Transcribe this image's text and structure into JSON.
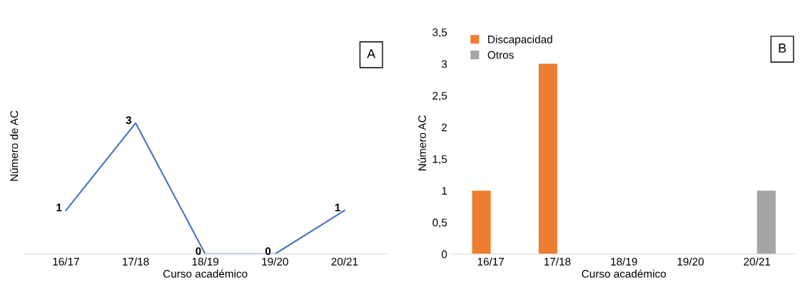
{
  "chart_data": [
    {
      "type": "line",
      "categories": [
        "16/17",
        "17/18",
        "18/19",
        "19/20",
        "20/21"
      ],
      "xlabel": "Curso académico",
      "ylabel": "Número de AC",
      "annotations": [
        "A"
      ],
      "data_labels": true,
      "tick_labels": "x",
      "grid": false,
      "legend": false,
      "marker": "none",
      "line_style": "solid",
      "series": [
        {
          "color": "#4472c4",
          "values": [
            1,
            3,
            0,
            0,
            1
          ]
        }
      ]
    },
    {
      "type": "bar",
      "categories": [
        "16/17",
        "17/18",
        "18/19",
        "19/20",
        "20/21"
      ],
      "xlabel": "Curso académico",
      "ylabel": "Número AC",
      "annotations": [
        "B"
      ],
      "grid": false,
      "legend": "top left",
      "ylim": [
        0,
        3.5
      ],
      "yticks": [
        0,
        {
          "value": 0.5,
          "label": "0,5"
        },
        1,
        {
          "value": 1.5,
          "label": "1,5"
        },
        2,
        {
          "value": 2.5,
          "label": "2,5"
        },
        3,
        {
          "value": 3.5,
          "label": "3,5"
        }
      ],
      "series": [
        {
          "name": "Discapacidad",
          "color": "#ed7d31",
          "values": [
            1,
            3,
            0,
            0,
            0
          ]
        },
        {
          "name": "Otros",
          "color": "#a5a5a5",
          "values": [
            0,
            0,
            0,
            0,
            1
          ]
        }
      ]
    }
  ]
}
